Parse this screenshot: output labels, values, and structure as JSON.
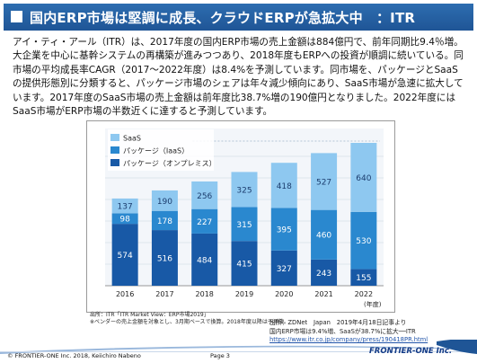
{
  "slide": {
    "title": "国内ERP市場は堅調に成長、クラウドERPが急拡大中　：ITR",
    "body": "アイ・ティ・アール（ITR）は、2017年度の国内ERP市場の売上金額は884億円で、前年同期比9.4％増。大企業を中心に基幹システムの再構築が進みつつあり、2018年度もERPへの投資が順調に続いている。同市場の平均成長率CAGR（2017～2022年度）は8.4%を予測しています。同市場を、パッケージとSaaSの提供形態別に分類すると、パッケージ市場のシェアは年々減少傾向にあり、SaaS市場が急速に拡大しています。2017年度のSaaS市場の売上金額は前年度比38.7%増の190億円となりました。2022年度にはSaaS市場がERP市場の半数近くに達すると予測しています。"
  },
  "chart_data": {
    "type": "bar",
    "stacked": true,
    "categories": [
      "2016",
      "2017",
      "2018",
      "2019",
      "2020",
      "2021",
      "2022"
    ],
    "x_suffix": "(年度)",
    "series": [
      {
        "name": "パッケージ（オンプレミス）",
        "color": "#1859a6",
        "values": [
          574,
          516,
          484,
          415,
          327,
          243,
          155
        ]
      },
      {
        "name": "パッケージ（IaaS）",
        "color": "#2a88cf",
        "values": [
          98,
          178,
          227,
          315,
          395,
          460,
          530
        ]
      },
      {
        "name": "SaaS",
        "color": "#8ec8f0",
        "values": [
          137,
          190,
          256,
          325,
          418,
          527,
          640
        ]
      }
    ],
    "grid": true,
    "legend": "top-left",
    "estimated_tags": [
      "予測"
    ]
  },
  "sources": {
    "chart_source_line1": "出所：ITR「ITR Market View：ERP市場2019」",
    "chart_source_line2": "※ベンダーの売上金額を対象とし、3月期ベースで換算。2018年度以降は予測値。",
    "citation_line1": "出所：ZDNet　Japan　2019年4月18日記事より",
    "citation_line2": "国内ERP市場は9.4%増、SaaSが38.7%に拡大──ITR",
    "citation_url": "https://www.itr.co.jp/company/press/190418PR.html"
  },
  "footer": {
    "copyright": "© FRONTIER-ONE  Inc. 2018, Keiichiro Nabeno",
    "page": "Page 3",
    "logo": "FRONTIER-ONE Inc."
  }
}
